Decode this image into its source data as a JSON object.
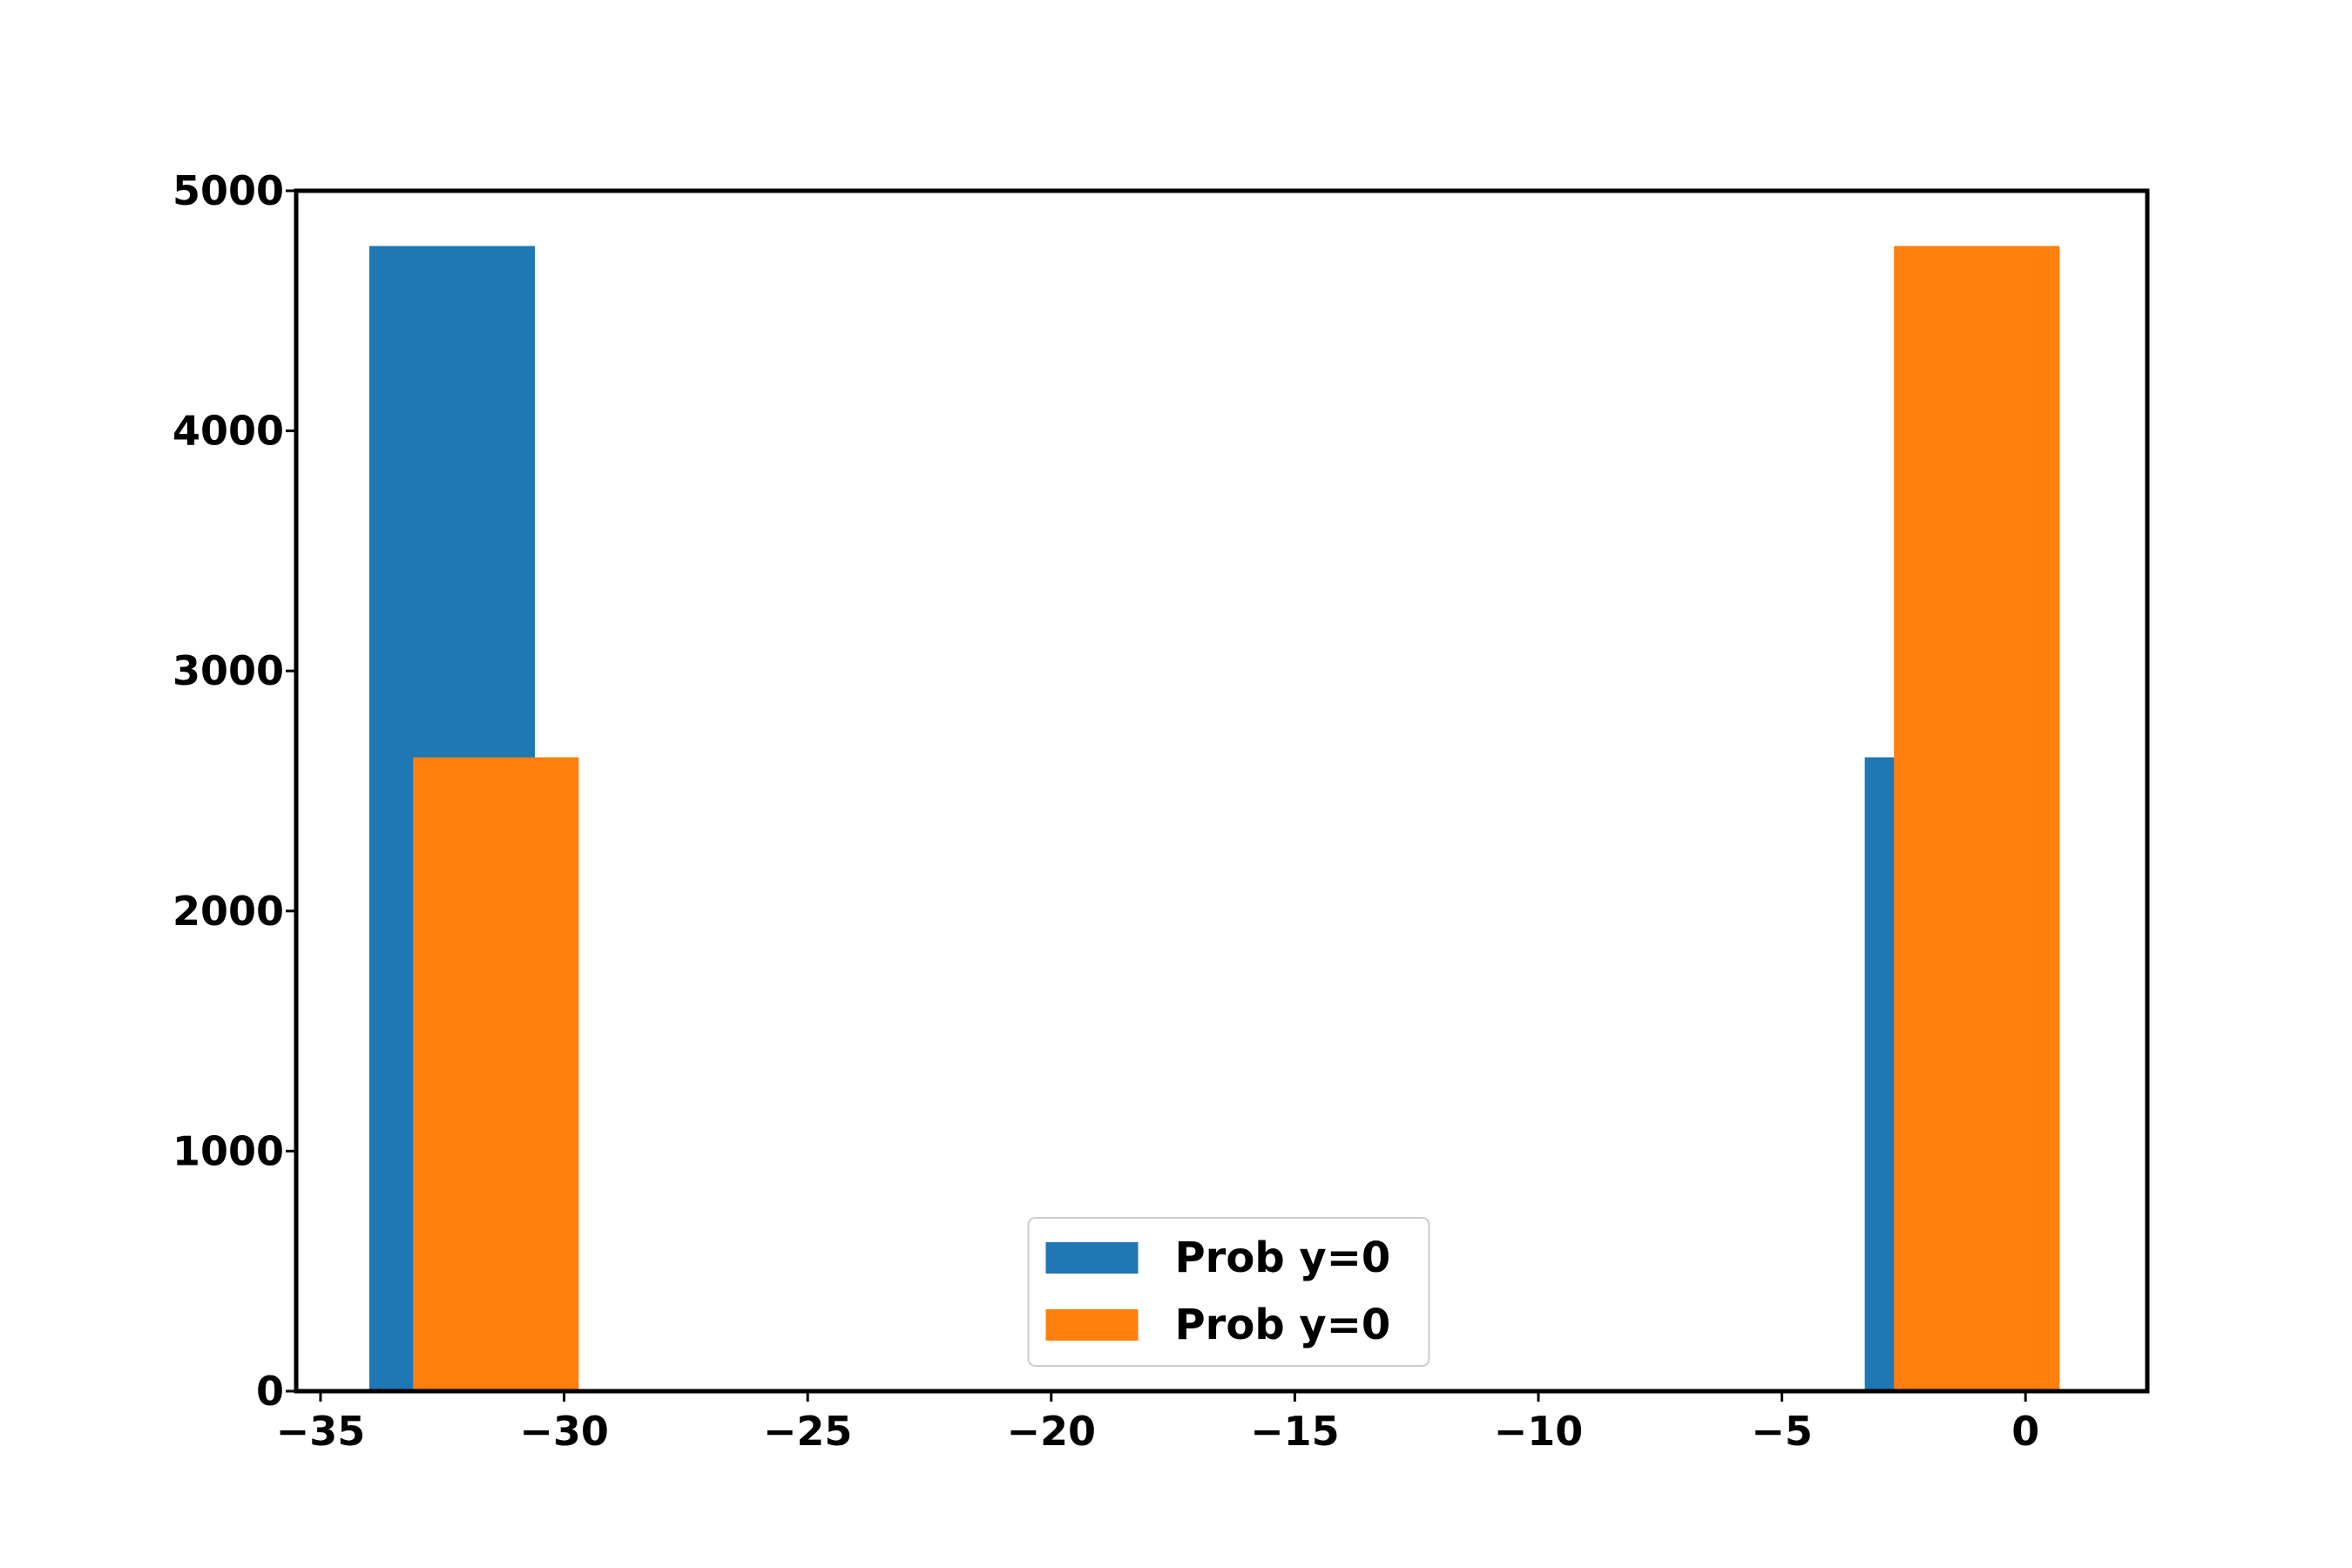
{
  "chart_data": {
    "type": "bar",
    "title": "",
    "xlabel": "",
    "ylabel": "",
    "xlim": [
      -35.5,
      2.5
    ],
    "ylim": [
      0,
      5000
    ],
    "x_ticks": [
      -35,
      -30,
      -25,
      -20,
      -15,
      -10,
      -5,
      0
    ],
    "x_tick_labels": [
      "−35",
      "−30",
      "−25",
      "−20",
      "−15",
      "−10",
      "−5",
      "0"
    ],
    "y_ticks": [
      0,
      1000,
      2000,
      3000,
      4000,
      5000
    ],
    "y_tick_labels": [
      "0",
      "1000",
      "2000",
      "3000",
      "4000",
      "5000"
    ],
    "grid": false,
    "legend_position": "lower center",
    "series": [
      {
        "name": "Prob y=0",
        "color": "#1f77b4",
        "bins": [
          {
            "x0": -34.0,
            "x1": -30.6,
            "value": 4770
          },
          {
            "x0": -3.3,
            "x1": 0.1,
            "value": 2640
          }
        ]
      },
      {
        "name": "Prob y=0",
        "color": "#ff7f0e",
        "bins": [
          {
            "x0": -33.1,
            "x1": -29.7,
            "value": 2640
          },
          {
            "x0": -2.7,
            "x1": 0.7,
            "value": 4770
          }
        ]
      }
    ]
  }
}
